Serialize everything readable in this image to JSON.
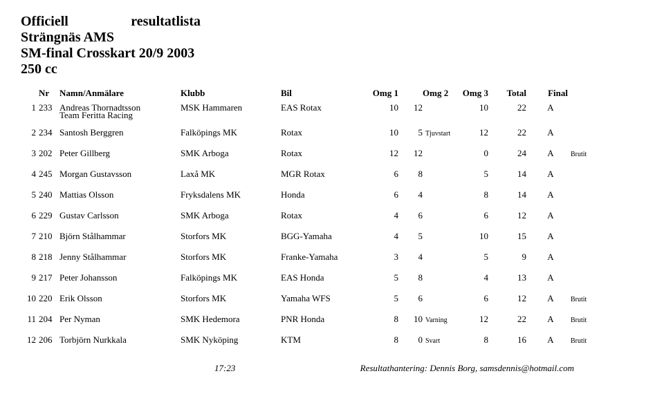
{
  "title": {
    "word1": "Officiell",
    "word2": "resultatlista",
    "line2": "Strängnäs AMS",
    "line3": "SM-final Crosskart 20/9 2003",
    "line4": "250 cc"
  },
  "headers": {
    "nr": "Nr",
    "namn": "Namn/Anmälare",
    "klubb": "Klubb",
    "bil": "Bil",
    "omg1": "Omg 1",
    "omg2": "Omg 2",
    "omg3": "Omg 3",
    "total": "Total",
    "final": "Final"
  },
  "rows": [
    {
      "rank": "1",
      "num": "233",
      "name": "Andreas Thornadtsson",
      "sub": "Team Feritta Racing",
      "klubb": "MSK Hammaren",
      "bil": "EAS Rotax",
      "o1": "10",
      "o2": "12",
      "o2n": "",
      "o3": "10",
      "tot": "22",
      "fin": "A",
      "finn": ""
    },
    {
      "rank": "2",
      "num": "234",
      "name": "Santosh Berggren",
      "sub": "",
      "klubb": "Falköpings MK",
      "bil": "Rotax",
      "o1": "10",
      "o2": "5",
      "o2n": "Tjuvstart",
      "o3": "12",
      "tot": "22",
      "fin": "A",
      "finn": ""
    },
    {
      "rank": "3",
      "num": "202",
      "name": "Peter Gillberg",
      "sub": "",
      "klubb": "SMK Arboga",
      "bil": "Rotax",
      "o1": "12",
      "o2": "12",
      "o2n": "",
      "o3": "0",
      "tot": "24",
      "fin": "A",
      "finn": "Brutit"
    },
    {
      "rank": "4",
      "num": "245",
      "name": "Morgan Gustavsson",
      "sub": "",
      "klubb": "Laxå MK",
      "bil": "MGR Rotax",
      "o1": "6",
      "o2": "8",
      "o2n": "",
      "o3": "5",
      "tot": "14",
      "fin": "A",
      "finn": ""
    },
    {
      "rank": "5",
      "num": "240",
      "name": "Mattias Olsson",
      "sub": "",
      "klubb": "Fryksdalens MK",
      "bil": "Honda",
      "o1": "6",
      "o2": "4",
      "o2n": "",
      "o3": "8",
      "tot": "14",
      "fin": "A",
      "finn": ""
    },
    {
      "rank": "6",
      "num": "229",
      "name": "Gustav Carlsson",
      "sub": "",
      "klubb": "SMK Arboga",
      "bil": "Rotax",
      "o1": "4",
      "o2": "6",
      "o2n": "",
      "o3": "6",
      "tot": "12",
      "fin": "A",
      "finn": ""
    },
    {
      "rank": "7",
      "num": "210",
      "name": "Björn Stålhammar",
      "sub": "",
      "klubb": "Storfors MK",
      "bil": "BGG-Yamaha",
      "o1": "4",
      "o2": "5",
      "o2n": "",
      "o3": "10",
      "tot": "15",
      "fin": "A",
      "finn": ""
    },
    {
      "rank": "8",
      "num": "218",
      "name": "Jenny Stålhammar",
      "sub": "",
      "klubb": "Storfors MK",
      "bil": "Franke-Yamaha",
      "o1": "3",
      "o2": "4",
      "o2n": "",
      "o3": "5",
      "tot": "9",
      "fin": "A",
      "finn": ""
    },
    {
      "rank": "9",
      "num": "217",
      "name": "Peter Johansson",
      "sub": "",
      "klubb": "Falköpings MK",
      "bil": "EAS Honda",
      "o1": "5",
      "o2": "8",
      "o2n": "",
      "o3": "4",
      "tot": "13",
      "fin": "A",
      "finn": ""
    },
    {
      "rank": "10",
      "num": "220",
      "name": "Erik Olsson",
      "sub": "",
      "klubb": "Storfors MK",
      "bil": "Yamaha WFS",
      "o1": "5",
      "o2": "6",
      "o2n": "",
      "o3": "6",
      "tot": "12",
      "fin": "A",
      "finn": "Brutit"
    },
    {
      "rank": "11",
      "num": "204",
      "name": "Per Nyman",
      "sub": "",
      "klubb": "SMK Hedemora",
      "bil": "PNR Honda",
      "o1": "8",
      "o2": "10",
      "o2n": "Varning",
      "o3": "12",
      "tot": "22",
      "fin": "A",
      "finn": "Brutit"
    },
    {
      "rank": "12",
      "num": "206",
      "name": "Torbjörn Nurkkala",
      "sub": "",
      "klubb": "SMK Nyköping",
      "bil": "KTM",
      "o1": "8",
      "o2": "0",
      "o2n": "Svart",
      "o3": "8",
      "tot": "16",
      "fin": "A",
      "finn": "Brutit"
    }
  ],
  "footer": {
    "time": "17:23",
    "credit": "Resultathantering: Dennis Borg, samsdennis@hotmail.com"
  }
}
